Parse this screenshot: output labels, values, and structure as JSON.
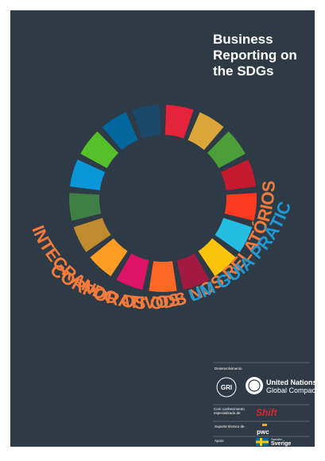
{
  "header": {
    "title_lines": [
      "Business",
      "Reporting on",
      "the SDGs"
    ]
  },
  "headline": {
    "line1": "INTEGRANDO OS ODS NOS RELATÓRIOS",
    "line2_a": "CORPORATIVOS:",
    "line2_b": "UM GUIA PRÁTICO"
  },
  "credits": {
    "developed_label": "Desenvolvimento",
    "gri": "GRI",
    "un_lines": [
      "United Nations",
      "Global Compact"
    ],
    "expertise_label": "Com conhecimento especializado de",
    "shift": "Shift",
    "technical_label": "Suporte técnico de",
    "pwc": "pwc",
    "support_label": "Apoio",
    "sweden_lines": [
      "Sweden",
      "Sverige"
    ]
  }
}
